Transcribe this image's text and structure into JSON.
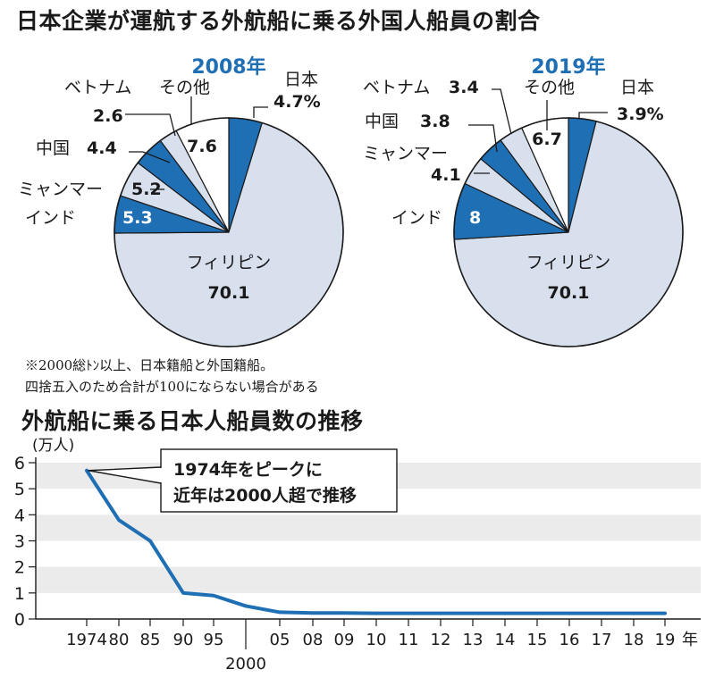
{
  "title": "日本企業が運航する外航船に乗る外国人船員の割合",
  "notes": [
    "※2000総ﾄﾝ以上、日本籍船と外国籍船。",
    "四捨五入のため合計が100にならない場合がある"
  ],
  "line_title": "外航船に乗る日本人船員数の推移",
  "colors": {
    "accent": "#1f6fb5",
    "light": "#d8e0ee",
    "white": "#ffffff",
    "band": "#ebebeb",
    "line": "#1f6fb5"
  },
  "chart_data": [
    {
      "type": "pie",
      "title": "2008年",
      "unit": "%",
      "slices": [
        {
          "name": "日本",
          "value": 4.7,
          "label": "4.7%",
          "fill": "accent"
        },
        {
          "name": "フィリピン",
          "value": 70.1,
          "label": "70.1",
          "fill": "light"
        },
        {
          "name": "インド",
          "value": 5.3,
          "label": "5.3",
          "fill": "accent"
        },
        {
          "name": "ミャンマー",
          "value": 5.2,
          "label": "5.2",
          "fill": "light"
        },
        {
          "name": "中国",
          "value": 4.4,
          "label": "4.4",
          "fill": "accent"
        },
        {
          "name": "ベトナム",
          "value": 2.6,
          "label": "2.6",
          "fill": "light"
        },
        {
          "name": "その他",
          "value": 7.6,
          "label": "7.6",
          "fill": "white"
        }
      ]
    },
    {
      "type": "pie",
      "title": "2019年",
      "unit": "%",
      "slices": [
        {
          "name": "日本",
          "value": 3.9,
          "label": "3.9%",
          "fill": "accent"
        },
        {
          "name": "フィリピン",
          "value": 70.1,
          "label": "70.1",
          "fill": "light"
        },
        {
          "name": "インド",
          "value": 8,
          "label": "8",
          "fill": "accent"
        },
        {
          "name": "ミャンマー",
          "value": 4.1,
          "label": "4.1",
          "fill": "light"
        },
        {
          "name": "中国",
          "value": 3.8,
          "label": "3.8",
          "fill": "accent"
        },
        {
          "name": "ベトナム",
          "value": 3.4,
          "label": "3.4",
          "fill": "light"
        },
        {
          "name": "その他",
          "value": 6.7,
          "label": "6.7",
          "fill": "white"
        }
      ]
    },
    {
      "type": "line",
      "title": "外航船に乗る日本人船員数の推移",
      "ylabel": "(万人)",
      "ylim": [
        0,
        6
      ],
      "yticks": [
        0,
        1,
        2,
        3,
        4,
        5,
        6
      ],
      "x_labels": [
        "1974",
        "80",
        "85",
        "90",
        "95",
        "2000",
        "05",
        "08",
        "09",
        "10",
        "11",
        "12",
        "13",
        "14",
        "15",
        "16",
        "17",
        "18",
        "19"
      ],
      "x_unit": "年",
      "values": [
        5.7,
        3.8,
        3.0,
        1.0,
        0.9,
        0.5,
        0.26,
        0.23,
        0.23,
        0.22,
        0.22,
        0.22,
        0.22,
        0.22,
        0.22,
        0.22,
        0.22,
        0.22,
        0.22
      ],
      "annotation": [
        "1974年をピークに",
        "近年は2000人超で推移"
      ]
    }
  ]
}
